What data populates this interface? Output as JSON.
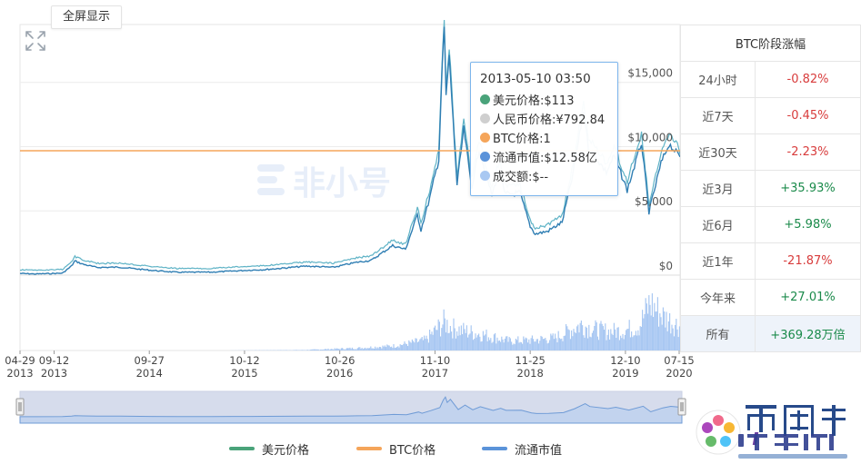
{
  "toolbar": {
    "fullscreen_label": "全屏显示"
  },
  "icons": {
    "expand": "expand-arrows-icon",
    "watermark": "feixiaohao-logo",
    "site_logo": "bibidashi-logo"
  },
  "watermark_text": "非小号",
  "colors": {
    "usd_line": "#2f7eb3",
    "usd_line_shadow": "#5fb3c6",
    "btc_line": "#f5a55a",
    "volume": "#a9c8f2",
    "legend_usd": "#4aa37a",
    "legend_btc": "#f5a55a",
    "legend_mcap": "#5b93d9",
    "tooltip_usd": "#4aa37a",
    "tooltip_cny": "#cfcfcf",
    "tooltip_btc": "#f5a55a",
    "tooltip_mcap": "#5b93d9",
    "tooltip_vol": "#a9c8f2"
  },
  "tooltip": {
    "date": "2013-05-10 03:50",
    "rows": [
      {
        "text": "美元价格:$113",
        "color_key": "tooltip_usd"
      },
      {
        "text": "人民币价格:¥792.84",
        "color_key": "tooltip_cny"
      },
      {
        "text": "BTC价格:1",
        "color_key": "tooltip_btc"
      },
      {
        "text": "流通市值:$12.58亿",
        "color_key": "tooltip_mcap"
      },
      {
        "text": "成交额:$--",
        "color_key": "tooltip_vol"
      }
    ]
  },
  "stats": {
    "title": "BTC阶段涨幅",
    "rows": [
      {
        "label": "24小时",
        "value": "-0.82%",
        "dir": "neg"
      },
      {
        "label": "近7天",
        "value": "-0.45%",
        "dir": "neg"
      },
      {
        "label": "近30天",
        "value": "-2.23%",
        "dir": "neg"
      },
      {
        "label": "近3月",
        "value": "+35.93%",
        "dir": "pos"
      },
      {
        "label": "近6月",
        "value": "+5.98%",
        "dir": "pos"
      },
      {
        "label": "近1年",
        "value": "-21.87%",
        "dir": "neg"
      },
      {
        "label": "今年来",
        "value": "+27.01%",
        "dir": "pos"
      },
      {
        "label": "所有",
        "value": "+369.28万倍",
        "dir": "pos",
        "active": true
      }
    ]
  },
  "legend": [
    {
      "label": "美元价格",
      "color_key": "legend_usd"
    },
    {
      "label": "BTC价格",
      "color_key": "legend_btc"
    },
    {
      "label": "流通市值",
      "color_key": "legend_mcap"
    }
  ],
  "chart_data": {
    "type": "line",
    "y_ticks": [
      "$15,000",
      "$10,000",
      "$5,000",
      "$0"
    ],
    "y_tick_values": [
      15000,
      10000,
      5000,
      0
    ],
    "ylim": [
      0,
      19500
    ],
    "x_ticks": [
      {
        "date": "2013-04-29",
        "md": "04-29",
        "year": "2013"
      },
      {
        "date": "2013-09-12",
        "md": "09-12",
        "year": "2013"
      },
      {
        "date": "2014-09-27",
        "md": "09-27",
        "year": "2014"
      },
      {
        "date": "2015-10-12",
        "md": "10-12",
        "year": "2015"
      },
      {
        "date": "2016-10-26",
        "md": "10-26",
        "year": "2016"
      },
      {
        "date": "2017-11-10",
        "md": "11-10",
        "year": "2017"
      },
      {
        "date": "2018-11-25",
        "md": "11-25",
        "year": "2018"
      },
      {
        "date": "2019-12-10",
        "md": "12-10",
        "year": "2019"
      },
      {
        "date": "2020-07-15",
        "md": "07-15",
        "year": "2020"
      }
    ],
    "xlim": [
      "2013-04-29",
      "2020-07-15"
    ],
    "series": [
      {
        "name": "美元价格",
        "points": [
          [
            "2013-04-29",
            130
          ],
          [
            "2013-07-01",
            90
          ],
          [
            "2013-10-15",
            150
          ],
          [
            "2013-11-20",
            700
          ],
          [
            "2013-12-04",
            1100
          ],
          [
            "2014-01-05",
            850
          ],
          [
            "2014-03-01",
            600
          ],
          [
            "2014-06-01",
            620
          ],
          [
            "2014-10-01",
            380
          ],
          [
            "2015-01-15",
            220
          ],
          [
            "2015-06-01",
            230
          ],
          [
            "2015-11-05",
            390
          ],
          [
            "2016-01-01",
            430
          ],
          [
            "2016-06-15",
            700
          ],
          [
            "2016-10-01",
            610
          ],
          [
            "2017-01-01",
            1000
          ],
          [
            "2017-03-01",
            1150
          ],
          [
            "2017-05-25",
            2300
          ],
          [
            "2017-07-15",
            2000
          ],
          [
            "2017-09-01",
            4700
          ],
          [
            "2017-09-15",
            3500
          ],
          [
            "2017-10-20",
            6000
          ],
          [
            "2017-11-25",
            9000
          ],
          [
            "2017-12-08",
            16000
          ],
          [
            "2017-12-17",
            19300
          ],
          [
            "2017-12-24",
            14000
          ],
          [
            "2018-01-06",
            17000
          ],
          [
            "2018-02-06",
            7000
          ],
          [
            "2018-03-05",
            11400
          ],
          [
            "2018-04-05",
            6800
          ],
          [
            "2018-05-05",
            9800
          ],
          [
            "2018-06-25",
            6200
          ],
          [
            "2018-07-25",
            8200
          ],
          [
            "2018-08-15",
            6300
          ],
          [
            "2018-10-15",
            6400
          ],
          [
            "2018-11-25",
            3800
          ],
          [
            "2018-12-15",
            3200
          ],
          [
            "2019-02-01",
            3400
          ],
          [
            "2019-04-01",
            4100
          ],
          [
            "2019-05-15",
            7900
          ],
          [
            "2019-06-26",
            12800
          ],
          [
            "2019-07-15",
            10000
          ],
          [
            "2019-09-25",
            8000
          ],
          [
            "2019-10-26",
            9300
          ],
          [
            "2019-12-17",
            6600
          ],
          [
            "2020-02-12",
            10300
          ],
          [
            "2020-03-13",
            4900
          ],
          [
            "2020-04-30",
            8700
          ],
          [
            "2020-06-01",
            10200
          ],
          [
            "2020-07-15",
            9200
          ]
        ]
      },
      {
        "name": "BTC价格",
        "constant": 1
      },
      {
        "name": "流通市值"
      }
    ],
    "volume_profile": [
      [
        "2013-04-29",
        0.0
      ],
      [
        "2015-06-01",
        0.0
      ],
      [
        "2016-06-01",
        0.01
      ],
      [
        "2017-01-01",
        0.05
      ],
      [
        "2017-06-01",
        0.1
      ],
      [
        "2017-10-01",
        0.22
      ],
      [
        "2017-12-15",
        0.6
      ],
      [
        "2018-01-15",
        0.48
      ],
      [
        "2018-03-01",
        0.42
      ],
      [
        "2018-06-01",
        0.32
      ],
      [
        "2018-09-01",
        0.2
      ],
      [
        "2018-12-01",
        0.22
      ],
      [
        "2019-03-01",
        0.26
      ],
      [
        "2019-06-15",
        0.55
      ],
      [
        "2019-08-01",
        0.45
      ],
      [
        "2019-10-01",
        0.4
      ],
      [
        "2019-12-01",
        0.42
      ],
      [
        "2020-02-01",
        0.52
      ],
      [
        "2020-03-15",
        1.0
      ],
      [
        "2020-05-10",
        0.7
      ],
      [
        "2020-07-15",
        0.5
      ]
    ]
  }
}
